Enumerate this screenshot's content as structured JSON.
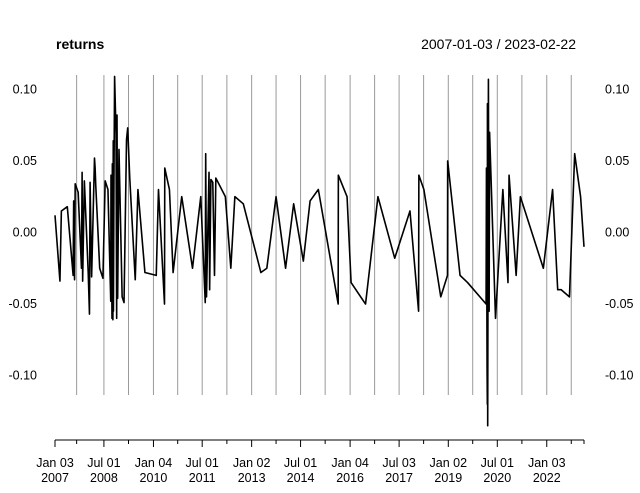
{
  "chart_data": {
    "type": "line",
    "title": "returns",
    "date_range": "2007-01-03 / 2023-02-22",
    "x_range": [
      "2007-01-03",
      "2023-02-22"
    ],
    "ylim": [
      -0.145,
      0.11
    ],
    "y_ticks": [
      {
        "value": 0.1,
        "label": "0.10"
      },
      {
        "value": 0.05,
        "label": "0.05"
      },
      {
        "value": 0.0,
        "label": "0.00"
      },
      {
        "value": -0.05,
        "label": "-0.05"
      },
      {
        "value": -0.1,
        "label": "-0.10"
      }
    ],
    "x_ticks": [
      {
        "date": "2007-01-03",
        "label_top": "Jan 03",
        "label_bottom": "2007"
      },
      {
        "date": "2008-07-01",
        "label_top": "Jul 01",
        "label_bottom": "2008"
      },
      {
        "date": "2010-01-04",
        "label_top": "Jan 04",
        "label_bottom": "2010"
      },
      {
        "date": "2011-07-01",
        "label_top": "Jul 01",
        "label_bottom": "2011"
      },
      {
        "date": "2013-01-02",
        "label_top": "Jan 02",
        "label_bottom": "2013"
      },
      {
        "date": "2014-07-01",
        "label_top": "Jul 01",
        "label_bottom": "2014"
      },
      {
        "date": "2016-01-04",
        "label_top": "Jan 04",
        "label_bottom": "2016"
      },
      {
        "date": "2017-07-03",
        "label_top": "Jul 03",
        "label_bottom": "2017"
      },
      {
        "date": "2019-01-02",
        "label_top": "Jan 02",
        "label_bottom": "2019"
      },
      {
        "date": "2020-07-01",
        "label_top": "Jul 01",
        "label_bottom": "2020"
      },
      {
        "date": "2022-01-03",
        "label_top": "Jan 03",
        "label_bottom": "2022"
      }
    ],
    "minor_x_ticks": [
      "2007-09-01",
      "2009-04-01",
      "2010-10-01",
      "2012-04-01",
      "2013-10-01",
      "2015-04-01",
      "2016-10-03",
      "2018-04-02",
      "2019-10-01",
      "2021-04-01",
      "2022-10-03"
    ],
    "grid": "vertical",
    "line_color": "#000000",
    "grid_color": "#9a9a9a",
    "series": [
      {
        "points": [
          [
            "2007-01-03",
            0.012
          ],
          [
            "2007-02-27",
            -0.034
          ],
          [
            "2007-03-15",
            0.015
          ],
          [
            "2007-05-20",
            0.018
          ],
          [
            "2007-07-24",
            -0.03
          ],
          [
            "2007-07-30",
            0.022
          ],
          [
            "2007-08-09",
            -0.033
          ],
          [
            "2007-08-16",
            0.034
          ],
          [
            "2007-09-18",
            0.028
          ],
          [
            "2007-10-25",
            -0.025
          ],
          [
            "2007-11-01",
            0.042
          ],
          [
            "2007-11-07",
            -0.034
          ],
          [
            "2007-11-26",
            0.036
          ],
          [
            "2008-01-08",
            -0.028
          ],
          [
            "2008-01-22",
            -0.057
          ],
          [
            "2008-01-29",
            0.035
          ],
          [
            "2008-02-15",
            -0.031
          ],
          [
            "2008-03-18",
            0.052
          ],
          [
            "2008-03-25",
            0.045
          ],
          [
            "2008-04-01",
            0.033
          ],
          [
            "2008-05-15",
            -0.025
          ],
          [
            "2008-06-20",
            -0.032
          ],
          [
            "2008-07-15",
            0.036
          ],
          [
            "2008-08-15",
            0.03
          ],
          [
            "2008-09-15",
            -0.048
          ],
          [
            "2008-09-18",
            0.04
          ],
          [
            "2008-09-29",
            -0.06
          ],
          [
            "2008-10-03",
            0.048
          ],
          [
            "2008-10-09",
            -0.061
          ],
          [
            "2008-10-13",
            0.064
          ],
          [
            "2008-10-15",
            -0.055
          ],
          [
            "2008-10-21",
            0.038
          ],
          [
            "2008-10-28",
            0.109
          ],
          [
            "2008-11-13",
            0.069
          ],
          [
            "2008-11-20",
            -0.06
          ],
          [
            "2008-11-24",
            0.082
          ],
          [
            "2008-12-01",
            -0.046
          ],
          [
            "2008-12-16",
            0.058
          ],
          [
            "2009-01-20",
            -0.045
          ],
          [
            "2009-02-10",
            -0.049
          ],
          [
            "2009-03-10",
            0.065
          ],
          [
            "2009-03-23",
            0.073
          ],
          [
            "2009-04-15",
            0.038
          ],
          [
            "2009-06-15",
            -0.033
          ],
          [
            "2009-07-15",
            0.03
          ],
          [
            "2009-10-01",
            -0.028
          ],
          [
            "2010-02-04",
            -0.03
          ],
          [
            "2010-03-01",
            0.03
          ],
          [
            "2010-05-07",
            -0.05
          ],
          [
            "2010-05-10",
            0.045
          ],
          [
            "2010-07-01",
            0.03
          ],
          [
            "2010-08-11",
            -0.028
          ],
          [
            "2010-11-15",
            0.025
          ],
          [
            "2011-03-15",
            -0.025
          ],
          [
            "2011-06-15",
            0.025
          ],
          [
            "2011-08-04",
            -0.049
          ],
          [
            "2011-08-09",
            0.055
          ],
          [
            "2011-08-18",
            -0.045
          ],
          [
            "2011-09-15",
            0.042
          ],
          [
            "2011-09-22",
            -0.04
          ],
          [
            "2011-10-06",
            0.037
          ],
          [
            "2011-10-27",
            0.035
          ],
          [
            "2011-11-15",
            -0.03
          ],
          [
            "2011-11-30",
            0.038
          ],
          [
            "2012-03-15",
            0.025
          ],
          [
            "2012-05-15",
            -0.025
          ],
          [
            "2012-06-29",
            0.025
          ],
          [
            "2012-10-01",
            0.02
          ],
          [
            "2013-04-15",
            -0.028
          ],
          [
            "2013-06-20",
            -0.025
          ],
          [
            "2013-10-01",
            0.025
          ],
          [
            "2014-01-15",
            -0.025
          ],
          [
            "2014-04-15",
            0.02
          ],
          [
            "2014-08-01",
            -0.02
          ],
          [
            "2014-10-15",
            0.022
          ],
          [
            "2015-01-15",
            0.03
          ],
          [
            "2015-08-24",
            -0.05
          ],
          [
            "2015-08-26",
            0.04
          ],
          [
            "2015-12-01",
            0.025
          ],
          [
            "2016-01-15",
            -0.035
          ],
          [
            "2016-06-24",
            -0.05
          ],
          [
            "2016-11-09",
            0.025
          ],
          [
            "2017-05-15",
            -0.018
          ],
          [
            "2017-11-01",
            0.015
          ],
          [
            "2018-02-05",
            -0.055
          ],
          [
            "2018-02-08",
            0.04
          ],
          [
            "2018-04-05",
            0.03
          ],
          [
            "2018-10-10",
            -0.045
          ],
          [
            "2018-12-24",
            -0.03
          ],
          [
            "2018-12-26",
            0.05
          ],
          [
            "2019-05-13",
            -0.03
          ],
          [
            "2019-08-05",
            -0.035
          ],
          [
            "2020-02-27",
            -0.05
          ],
          [
            "2020-03-02",
            0.045
          ],
          [
            "2020-03-09",
            -0.095
          ],
          [
            "2020-03-12",
            -0.12
          ],
          [
            "2020-03-13",
            0.09
          ],
          [
            "2020-03-16",
            -0.135
          ],
          [
            "2020-03-24",
            0.107
          ],
          [
            "2020-03-26",
            0.06
          ],
          [
            "2020-04-01",
            -0.055
          ],
          [
            "2020-04-06",
            0.07
          ],
          [
            "2020-06-11",
            -0.06
          ],
          [
            "2020-09-01",
            0.03
          ],
          [
            "2020-10-28",
            -0.035
          ],
          [
            "2020-11-09",
            0.04
          ],
          [
            "2021-01-27",
            -0.03
          ],
          [
            "2021-03-15",
            0.025
          ],
          [
            "2021-11-26",
            -0.025
          ],
          [
            "2022-03-09",
            0.03
          ],
          [
            "2022-05-05",
            -0.04
          ],
          [
            "2022-06-13",
            -0.04
          ],
          [
            "2022-09-13",
            -0.045
          ],
          [
            "2022-11-10",
            0.055
          ],
          [
            "2023-01-15",
            0.025
          ],
          [
            "2023-02-22",
            -0.01
          ]
        ]
      }
    ]
  }
}
